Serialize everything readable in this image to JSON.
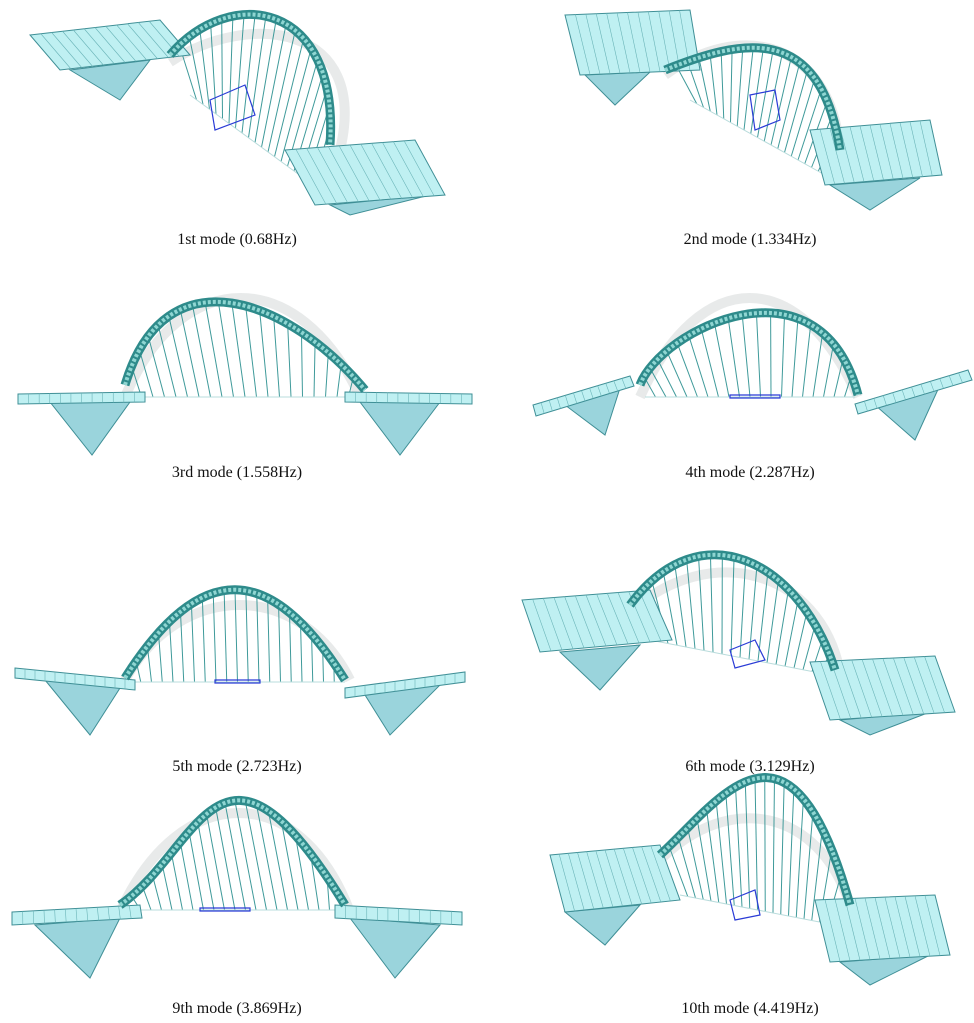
{
  "panels": [
    {
      "caption": "1st mode (0.68Hz)"
    },
    {
      "caption": "2nd mode (1.334Hz)"
    },
    {
      "caption": "3rd mode (1.558Hz)"
    },
    {
      "caption": "4th mode (2.287Hz)"
    },
    {
      "caption": "5th mode (2.723Hz)"
    },
    {
      "caption": "6th mode (3.129Hz)"
    },
    {
      "caption": "9th mode (3.869Hz)"
    },
    {
      "caption": "10th mode (4.419Hz)"
    }
  ]
}
